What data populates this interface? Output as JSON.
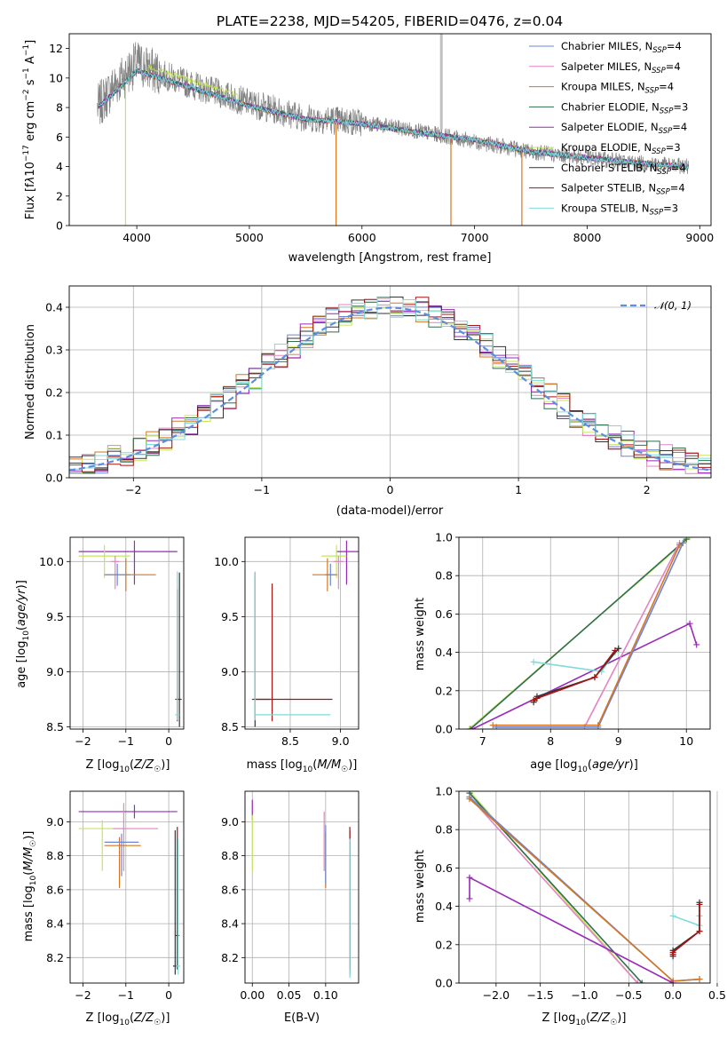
{
  "title": "PLATE=2238, MJD=54205, FIBERID=0476, z=0.04",
  "colors": {
    "chabrier_miles": "#6b85d6",
    "salpeter_miles": "#e383c3",
    "kroupa_miles": "#d6761f",
    "chabrier_elodie": "#2f6f4f",
    "salpeter_elodie": "#9a2ab8",
    "kroupa_elodie": "#c5e65a",
    "chabrier_stelib": "#333333",
    "salpeter_stelib": "#a31515",
    "kroupa_stelib": "#7fdada",
    "data_grey": "#808080",
    "gaussian": "#5b8ee0"
  },
  "legend": {
    "models": [
      {
        "key": "chabrier_miles",
        "label": "Chabrier MILES, N",
        "sub": "SSP",
        "tail": "=4"
      },
      {
        "key": "salpeter_miles",
        "label": "Salpeter MILES, N",
        "sub": "SSP",
        "tail": "=4"
      },
      {
        "key": "kroupa_miles",
        "label": "Kroupa MILES, N",
        "sub": "SSP",
        "tail": "=4"
      },
      {
        "key": "chabrier_elodie",
        "label": "Chabrier ELODIE, N",
        "sub": "SSP",
        "tail": "=3"
      },
      {
        "key": "salpeter_elodie",
        "label": "Salpeter ELODIE, N",
        "sub": "SSP",
        "tail": "=4"
      },
      {
        "key": "kroupa_elodie",
        "label": "Kroupa ELODIE, N",
        "sub": "SSP",
        "tail": "=3"
      },
      {
        "key": "chabrier_stelib",
        "label": "Chabrier STELIB, N",
        "sub": "SSP",
        "tail": "=4"
      },
      {
        "key": "salpeter_stelib",
        "label": "Salpeter STELIB, N",
        "sub": "SSP",
        "tail": "=4"
      },
      {
        "key": "kroupa_stelib",
        "label": "Kroupa STELIB, N",
        "sub": "SSP",
        "tail": "=3"
      }
    ],
    "gaussian_label": "𝒩(0, 1)"
  },
  "chart_data": [
    {
      "type": "line",
      "id": "spectrum",
      "xlabel": "wavelength [Angstrom, rest frame]",
      "ylabel": "Flux [f_λ10^-17 erg cm^-2 s^-1 A^-1]",
      "xlim": [
        3400,
        9100
      ],
      "ylim": [
        0,
        13
      ],
      "xticks": [
        4000,
        5000,
        6000,
        7000,
        8000,
        9000
      ],
      "yticks": [
        0,
        2,
        4,
        6,
        8,
        10,
        12
      ],
      "legend_position": "upper right",
      "data_envelope": {
        "x": [
          3650,
          3800,
          4000,
          4200,
          4500,
          5000,
          5500,
          6000,
          6500,
          7000,
          7500,
          8000,
          8500,
          8900
        ],
        "y": [
          8.0,
          9.5,
          11.0,
          10.3,
          9.5,
          8.3,
          7.3,
          7.0,
          6.4,
          5.7,
          5.0,
          4.6,
          4.2,
          4.0
        ]
      },
      "model_envelope": {
        "x": [
          3650,
          3800,
          4000,
          4200,
          4500,
          5000,
          5500,
          6000,
          6500,
          7000,
          7500,
          8000,
          8500,
          8900
        ],
        "y": [
          8.0,
          9.0,
          10.5,
          10.0,
          9.3,
          8.1,
          7.2,
          6.9,
          6.3,
          5.8,
          5.0,
          4.6,
          4.2,
          4.0
        ]
      }
    },
    {
      "type": "line",
      "id": "residuals",
      "xlabel": "(data-model)/error",
      "ylabel": "Normed distribution",
      "xlim": [
        -2.5,
        2.5
      ],
      "ylim": [
        0,
        0.45
      ],
      "xticks": [
        -2,
        -1,
        0,
        1,
        2
      ],
      "yticks": [
        0.0,
        0.1,
        0.2,
        0.3,
        0.4
      ],
      "grid": true,
      "legend_position": "upper right",
      "gaussian": {
        "mean": 0,
        "sigma": 1
      },
      "bin_width": 0.1
    },
    {
      "type": "scatter",
      "id": "age_vs_Z",
      "xlabel": "Z [log10(Z/Z☉)]",
      "ylabel": "age [log10(age/yr)]",
      "xlim": [
        -2.3,
        0.35
      ],
      "ylim": [
        8.48,
        10.22
      ],
      "xticks": [
        -2,
        -1,
        0
      ],
      "yticks": [
        8.5,
        9.0,
        9.5,
        10.0
      ],
      "grid": true,
      "points": [
        {
          "series": "salpeter_elodie",
          "x": -0.8,
          "y": 10.09,
          "xerr": [
            1.3,
            1.0
          ],
          "yerr": [
            0.3,
            0.1
          ]
        },
        {
          "series": "kroupa_elodie",
          "x": -1.5,
          "y": 10.05,
          "xerr": [
            0.6,
            0.6
          ],
          "yerr": [
            0.2,
            0.1
          ]
        },
        {
          "series": "salpeter_miles",
          "x": -1.25,
          "y": 10.0,
          "xerr": [
            0.1,
            0.1
          ],
          "yerr": [
            0.25,
            0.05
          ]
        },
        {
          "series": "kroupa_miles",
          "x": -1.0,
          "y": 9.88,
          "xerr": [
            0.5,
            0.7
          ],
          "yerr": [
            0.15,
            0.15
          ]
        },
        {
          "series": "chabrier_miles",
          "x": -1.2,
          "y": 9.88,
          "xerr": [
            0.3,
            0.3
          ],
          "yerr": [
            0.1,
            0.1
          ]
        },
        {
          "series": "chabrier_stelib",
          "x": 0.25,
          "y": 8.75,
          "xerr": [
            0.05,
            0.05
          ],
          "yerr": [
            0.25,
            1.15
          ]
        },
        {
          "series": "salpeter_stelib",
          "x": 0.2,
          "y": 8.75,
          "xerr": [
            0.05,
            0.05
          ],
          "yerr": [
            0.2,
            1.0
          ]
        },
        {
          "series": "kroupa_stelib",
          "x": 0.2,
          "y": 8.61,
          "xerr": [
            0.05,
            0.05
          ],
          "yerr": [
            0.05,
            1.3
          ]
        }
      ]
    },
    {
      "type": "scatter",
      "id": "age_vs_mass",
      "xlabel": "mass [log10(M/M☉)]",
      "ylabel": "",
      "xlim": [
        8.05,
        9.18
      ],
      "ylim": [
        8.48,
        10.22
      ],
      "xticks": [
        8.5,
        9.0
      ],
      "yticks": [
        8.5,
        9.0,
        9.5,
        10.0
      ],
      "grid": true,
      "points": [
        {
          "series": "salpeter_elodie",
          "x": 9.06,
          "y": 10.09,
          "xerr": [
            0.1,
            0.12
          ],
          "yerr": [
            0.3,
            0.1
          ]
        },
        {
          "series": "kroupa_elodie",
          "x": 8.96,
          "y": 10.05,
          "xerr": [
            0.15,
            0.1
          ],
          "yerr": [
            0.2,
            0.1
          ]
        },
        {
          "series": "salpeter_miles",
          "x": 8.98,
          "y": 10.0,
          "xerr": [
            0.05,
            0.05
          ],
          "yerr": [
            0.25,
            0.05
          ]
        },
        {
          "series": "kroupa_miles",
          "x": 8.87,
          "y": 9.88,
          "xerr": [
            0.15,
            0.1
          ],
          "yerr": [
            0.15,
            0.15
          ]
        },
        {
          "series": "chabrier_miles",
          "x": 8.9,
          "y": 9.88,
          "xerr": [
            0.05,
            0.05
          ],
          "yerr": [
            0.1,
            0.1
          ]
        },
        {
          "series": "chabrier_stelib",
          "x": 8.15,
          "y": 8.75,
          "xerr": [
            0.0,
            0.15
          ],
          "yerr": [
            0.25,
            1.15
          ]
        },
        {
          "series": "salpeter_stelib",
          "x": 8.32,
          "y": 8.75,
          "xerr": [
            0.2,
            0.6
          ],
          "yerr": [
            0.2,
            1.05
          ]
        },
        {
          "series": "kroupa_stelib",
          "x": 8.15,
          "y": 8.61,
          "xerr": [
            0.0,
            0.75
          ],
          "yerr": [
            0.05,
            1.3
          ]
        }
      ]
    },
    {
      "type": "line",
      "id": "massweight_vs_age",
      "xlabel": "age [log10(age/yr)]",
      "ylabel": "mass weight",
      "xlim": [
        6.65,
        10.35
      ],
      "ylim": [
        0,
        1
      ],
      "xticks": [
        7,
        8,
        9,
        10
      ],
      "yticks": [
        0.0,
        0.2,
        0.4,
        0.6,
        0.8,
        1.0
      ],
      "grid": true,
      "series": [
        {
          "series": "kroupa_elodie",
          "x": [
            6.8,
            10.05
          ],
          "y": [
            0.0,
            1.0
          ]
        },
        {
          "series": "chabrier_elodie",
          "x": [
            6.82,
            10.0
          ],
          "y": [
            0.0,
            0.99
          ]
        },
        {
          "series": "salpeter_elodie",
          "x": [
            6.85,
            10.05,
            10.15
          ],
          "y": [
            0.0,
            0.55,
            0.44
          ]
        },
        {
          "series": "salpeter_miles",
          "x": [
            7.2,
            8.5,
            9.9
          ],
          "y": [
            0.01,
            0.01,
            0.97
          ]
        },
        {
          "series": "chabrier_miles",
          "x": [
            7.2,
            8.7,
            9.95
          ],
          "y": [
            0.01,
            0.01,
            0.97
          ]
        },
        {
          "series": "kroupa_miles",
          "x": [
            7.15,
            8.7,
            9.9
          ],
          "y": [
            0.02,
            0.02,
            0.96
          ]
        },
        {
          "series": "kroupa_stelib",
          "x": [
            7.75,
            8.75,
            8.95
          ],
          "y": [
            0.35,
            0.3,
            0.4
          ]
        },
        {
          "series": "chabrier_stelib",
          "x": [
            7.75,
            7.8,
            8.65,
            9.0
          ],
          "y": [
            0.14,
            0.17,
            0.27,
            0.42
          ]
        },
        {
          "series": "salpeter_stelib",
          "x": [
            7.75,
            7.8,
            8.65,
            8.95
          ],
          "y": [
            0.15,
            0.16,
            0.27,
            0.41
          ]
        }
      ]
    },
    {
      "type": "scatter",
      "id": "mass_vs_Z",
      "xlabel": "Z [log10(Z/Z☉)]",
      "ylabel": "mass [log10(M/M☉)]",
      "xlim": [
        -2.3,
        0.35
      ],
      "ylim": [
        8.05,
        9.18
      ],
      "xticks": [
        -2,
        -1,
        0
      ],
      "yticks": [
        8.2,
        8.4,
        8.6,
        8.8,
        9.0
      ],
      "grid": true,
      "points": [
        {
          "series": "salpeter_elodie",
          "x": -0.8,
          "y": 9.06,
          "xerr": [
            1.3,
            1.0
          ],
          "yerr": [
            0.04,
            0.04
          ]
        },
        {
          "series": "kroupa_elodie",
          "x": -1.55,
          "y": 8.96,
          "xerr": [
            0.55,
            0.6
          ],
          "yerr": [
            0.25,
            0.05
          ]
        },
        {
          "series": "salpeter_miles",
          "x": -1.05,
          "y": 8.96,
          "xerr": [
            0.25,
            0.8
          ],
          "yerr": [
            0.25,
            0.15
          ]
        },
        {
          "series": "kroupa_miles",
          "x": -1.15,
          "y": 8.86,
          "xerr": [
            0.35,
            0.5
          ],
          "yerr": [
            0.25,
            0.05
          ]
        },
        {
          "series": "chabrier_miles",
          "x": -1.1,
          "y": 8.88,
          "xerr": [
            0.4,
            0.4
          ],
          "yerr": [
            0.2,
            0.05
          ]
        },
        {
          "series": "chabrier_stelib",
          "x": 0.15,
          "y": 8.15,
          "xerr": [
            0.05,
            0.05
          ],
          "yerr": [
            0.05,
            0.8
          ]
        },
        {
          "series": "salpeter_stelib",
          "x": 0.2,
          "y": 8.33,
          "xerr": [
            0.05,
            0.05
          ],
          "yerr": [
            0.2,
            0.64
          ]
        },
        {
          "series": "kroupa_stelib",
          "x": 0.22,
          "y": 8.15,
          "xerr": [
            0.05,
            0.05
          ],
          "yerr": [
            0.05,
            0.75
          ]
        }
      ]
    },
    {
      "type": "scatter",
      "id": "mass_vs_ebv",
      "xlabel": "E(B-V)",
      "ylabel": "",
      "xlim": [
        -0.01,
        0.145
      ],
      "ylim": [
        8.05,
        9.18
      ],
      "xticks": [
        0.0,
        0.05,
        0.1
      ],
      "xticklabels": [
        "0.00",
        "0.05",
        "0.10"
      ],
      "yticks": [
        8.2,
        8.4,
        8.6,
        8.8,
        9.0
      ],
      "grid": true,
      "points": [
        {
          "series": "salpeter_elodie",
          "x": 0.0,
          "y": 9.06,
          "yerr": [
            0.05,
            0.07
          ]
        },
        {
          "series": "kroupa_elodie",
          "x": 0.0,
          "y": 8.96,
          "yerr": [
            0.25,
            0.08
          ]
        },
        {
          "series": "salpeter_miles",
          "x": 0.098,
          "y": 8.96,
          "yerr": [
            0.25,
            0.1
          ]
        },
        {
          "series": "kroupa_miles",
          "x": 0.1,
          "y": 8.86,
          "yerr": [
            0.25,
            0.08
          ]
        },
        {
          "series": "chabrier_miles",
          "x": 0.1,
          "y": 8.88,
          "yerr": [
            0.25,
            0.1
          ]
        },
        {
          "series": "chabrier_stelib",
          "x": 0.133,
          "y": 8.15,
          "yerr": [
            0.05,
            0.8
          ]
        },
        {
          "series": "salpeter_stelib",
          "x": 0.133,
          "y": 8.33,
          "yerr": [
            0.2,
            0.64
          ]
        },
        {
          "series": "kroupa_stelib",
          "x": 0.133,
          "y": 8.15,
          "yerr": [
            0.07,
            0.75
          ]
        }
      ]
    },
    {
      "type": "line",
      "id": "massweight_vs_Z",
      "xlabel": "Z [log10(Z/Z☉)]",
      "ylabel": "mass weight",
      "xlim": [
        -2.42,
        0.42
      ],
      "ylim": [
        0,
        1
      ],
      "xticks": [
        -2.0,
        -1.5,
        -1.0,
        -0.5,
        0.0,
        0.5
      ],
      "xticklabels": [
        "−2.0",
        "−1.5",
        "−1.0",
        "−0.5",
        "0.0",
        "0.5"
      ],
      "yticks": [
        0.0,
        0.2,
        0.4,
        0.6,
        0.8,
        1.0
      ],
      "grid": true,
      "series": [
        {
          "series": "kroupa_elodie",
          "x": [
            -2.3,
            -0.4
          ],
          "y": [
            1.0,
            0.0
          ]
        },
        {
          "series": "chabrier_elodie",
          "x": [
            -2.3,
            -0.35
          ],
          "y": [
            0.99,
            0.0
          ]
        },
        {
          "series": "salpeter_miles",
          "x": [
            -2.3,
            -0.4
          ],
          "y": [
            0.97,
            0.0
          ]
        },
        {
          "series": "chabrier_miles",
          "x": [
            -2.3,
            0.0,
            0.3
          ],
          "y": [
            0.97,
            0.01,
            0.02
          ]
        },
        {
          "series": "kroupa_miles",
          "x": [
            -2.3,
            0.0,
            0.3
          ],
          "y": [
            0.96,
            0.01,
            0.02
          ]
        },
        {
          "series": "salpeter_elodie",
          "x": [
            -2.3,
            -2.3,
            0.0
          ],
          "y": [
            0.44,
            0.55,
            0.0
          ]
        },
        {
          "series": "kroupa_stelib",
          "x": [
            0.0,
            0.3,
            0.3
          ],
          "y": [
            0.35,
            0.3,
            0.35
          ]
        },
        {
          "series": "chabrier_stelib",
          "x": [
            0.0,
            0.0,
            0.3,
            0.3
          ],
          "y": [
            0.14,
            0.17,
            0.27,
            0.42
          ]
        },
        {
          "series": "salpeter_stelib",
          "x": [
            0.0,
            0.0,
            0.3,
            0.3
          ],
          "y": [
            0.15,
            0.16,
            0.27,
            0.41
          ]
        }
      ]
    }
  ]
}
